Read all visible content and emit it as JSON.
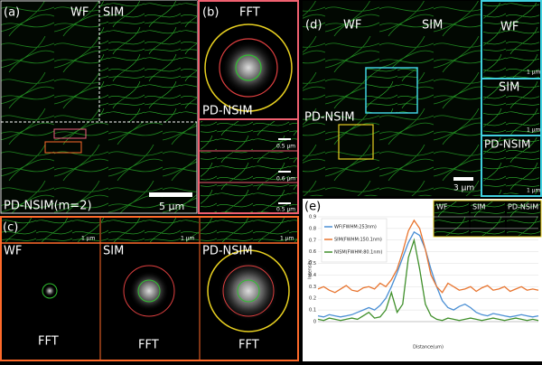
{
  "panels": {
    "a": {
      "label": "(a)",
      "wf": "WF",
      "sim": "SIM",
      "pdnsim": "PD-NSIM(m=2)",
      "scale": "5 μm"
    },
    "b": {
      "label": "(b)",
      "fft": "FFT",
      "pdnsim": "PD-NSIM",
      "scales": [
        "0.5 μm",
        "0.6 μm",
        "0.5 μm"
      ]
    },
    "c": {
      "label": "(c)",
      "scales": [
        "1 μm",
        "1 μm",
        "1 μm"
      ],
      "methods": [
        "WF",
        "SIM",
        "PD-NSIM"
      ],
      "fft": [
        "FFT",
        "FFT",
        "FFT"
      ]
    },
    "d": {
      "label": "(d)",
      "wf": "WF",
      "sim": "SIM",
      "pdnsim": "PD-NSIM",
      "scale": "3 μm",
      "insets": [
        "WF",
        "SIM",
        "PD-NSIM"
      ],
      "inset_scales": [
        "1 μm",
        "1 μm",
        "1 μm"
      ]
    },
    "e": {
      "label": "(e)",
      "insets": [
        "WF",
        "SIM",
        "PD-NSIM"
      ]
    }
  },
  "chart_data": {
    "type": "line",
    "xlabel": "Distance(um)",
    "ylabel": "Intensity",
    "x": [
      0,
      0.05,
      0.1,
      0.15,
      0.2,
      0.25,
      0.3,
      0.35,
      0.4,
      0.45,
      0.5,
      0.55,
      0.6,
      0.65,
      0.7,
      0.75,
      0.8,
      0.85,
      0.9,
      0.95,
      1,
      1.05,
      1.1,
      1.15,
      1.2,
      1.25,
      1.3,
      1.35,
      1.4,
      1.45,
      1.5,
      1.55,
      1.6,
      1.65,
      1.7,
      1.75,
      1.8,
      1.85,
      1.9,
      1.95
    ],
    "xlim": [
      0,
      1.95
    ],
    "ylim": [
      0,
      0.9
    ],
    "yticks": [
      0,
      0.1,
      0.2,
      0.3,
      0.4,
      0.5,
      0.6,
      0.7,
      0.8,
      0.9
    ],
    "grid": true,
    "legend": "upper left",
    "series": [
      {
        "name": "WF(FWHM:253nm)",
        "color": "#4a8fd4",
        "values": [
          0.05,
          0.04,
          0.06,
          0.05,
          0.04,
          0.05,
          0.06,
          0.08,
          0.1,
          0.12,
          0.1,
          0.14,
          0.2,
          0.3,
          0.42,
          0.55,
          0.68,
          0.77,
          0.74,
          0.62,
          0.45,
          0.3,
          0.18,
          0.12,
          0.1,
          0.13,
          0.15,
          0.12,
          0.08,
          0.06,
          0.05,
          0.07,
          0.06,
          0.05,
          0.04,
          0.05,
          0.06,
          0.05,
          0.04,
          0.05
        ]
      },
      {
        "name": "SIM(FWHM:150.1nm)",
        "color": "#e8742e",
        "values": [
          0.28,
          0.3,
          0.27,
          0.25,
          0.28,
          0.31,
          0.27,
          0.26,
          0.29,
          0.3,
          0.28,
          0.33,
          0.3,
          0.36,
          0.45,
          0.6,
          0.78,
          0.87,
          0.8,
          0.62,
          0.4,
          0.3,
          0.25,
          0.33,
          0.3,
          0.27,
          0.28,
          0.3,
          0.26,
          0.29,
          0.31,
          0.27,
          0.28,
          0.3,
          0.26,
          0.28,
          0.3,
          0.27,
          0.28,
          0.27
        ]
      },
      {
        "name": "NISM(FWHM:80.1nm)",
        "color": "#3f8f2a",
        "values": [
          0.02,
          0.01,
          0.03,
          0.02,
          0.01,
          0.02,
          0.03,
          0.02,
          0.05,
          0.08,
          0.03,
          0.04,
          0.1,
          0.25,
          0.08,
          0.15,
          0.55,
          0.7,
          0.45,
          0.15,
          0.05,
          0.02,
          0.01,
          0.03,
          0.02,
          0.01,
          0.02,
          0.03,
          0.02,
          0.01,
          0.02,
          0.03,
          0.02,
          0.01,
          0.02,
          0.03,
          0.02,
          0.01,
          0.02,
          0.01
        ]
      }
    ]
  }
}
